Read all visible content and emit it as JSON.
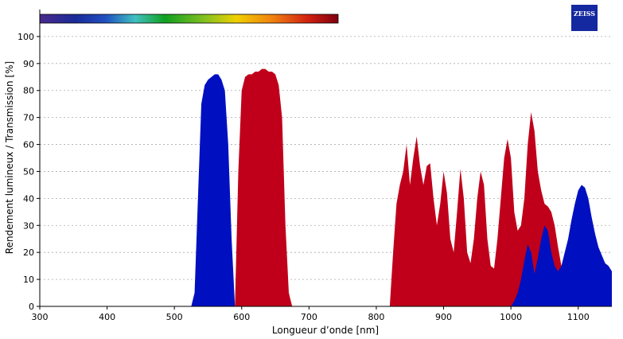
{
  "chart_data": {
    "type": "area",
    "logo": "ZEISS",
    "xlabel": "Longueur d’onde [nm]",
    "ylabel": "Rendement lumineux / Transmission [%]",
    "xlim": [
      300,
      1150
    ],
    "ylim": [
      0,
      110
    ],
    "xticks": [
      300,
      400,
      500,
      600,
      700,
      800,
      900,
      1000,
      1100
    ],
    "yticks": [
      0,
      10,
      20,
      30,
      40,
      50,
      60,
      70,
      80,
      90,
      100
    ],
    "grid": true,
    "series": [
      {
        "color": "#c0001a",
        "x": [
          300,
          590,
          595,
          600,
          605,
          610,
          615,
          620,
          625,
          630,
          635,
          640,
          645,
          650,
          655,
          660,
          665,
          670,
          675,
          820,
          825,
          830,
          835,
          840,
          845,
          850,
          855,
          860,
          865,
          870,
          875,
          880,
          885,
          890,
          895,
          900,
          905,
          910,
          915,
          920,
          925,
          930,
          935,
          940,
          945,
          950,
          955,
          960,
          965,
          970,
          975,
          980,
          985,
          990,
          995,
          1000,
          1005,
          1010,
          1015,
          1020,
          1025,
          1030,
          1035,
          1040,
          1045,
          1050,
          1055,
          1060,
          1065,
          1070,
          1075,
          1080,
          1085,
          1090,
          1150
        ],
        "values": [
          0,
          0,
          50,
          80,
          85,
          86,
          86,
          87,
          87,
          88,
          88,
          87,
          87,
          86,
          82,
          70,
          30,
          5,
          0,
          0,
          20,
          38,
          45,
          50,
          60,
          45,
          55,
          63,
          52,
          45,
          52,
          53,
          40,
          30,
          38,
          50,
          42,
          25,
          20,
          35,
          51,
          40,
          20,
          16,
          25,
          40,
          50,
          45,
          25,
          15,
          14,
          25,
          40,
          55,
          62,
          55,
          35,
          28,
          30,
          40,
          60,
          72,
          65,
          50,
          43,
          38,
          37,
          35,
          30,
          22,
          15,
          13,
          10,
          0,
          0
        ]
      },
      {
        "color": "#0010c0",
        "x": [
          300,
          525,
          530,
          535,
          540,
          545,
          550,
          555,
          560,
          565,
          570,
          575,
          580,
          585,
          590,
          1000,
          1005,
          1010,
          1015,
          1020,
          1025,
          1030,
          1035,
          1040,
          1045,
          1050,
          1055,
          1060,
          1065,
          1070,
          1075,
          1080,
          1085,
          1090,
          1095,
          1100,
          1105,
          1110,
          1115,
          1120,
          1125,
          1130,
          1135,
          1140,
          1145,
          1150
        ],
        "values": [
          0,
          0,
          5,
          40,
          75,
          82,
          84,
          85,
          86,
          86,
          84,
          80,
          60,
          25,
          0,
          0,
          2,
          5,
          10,
          17,
          23,
          20,
          12,
          18,
          25,
          30,
          28,
          20,
          15,
          13,
          15,
          20,
          25,
          32,
          38,
          43,
          45,
          44,
          40,
          33,
          27,
          22,
          19,
          16,
          15,
          13
        ]
      }
    ]
  }
}
